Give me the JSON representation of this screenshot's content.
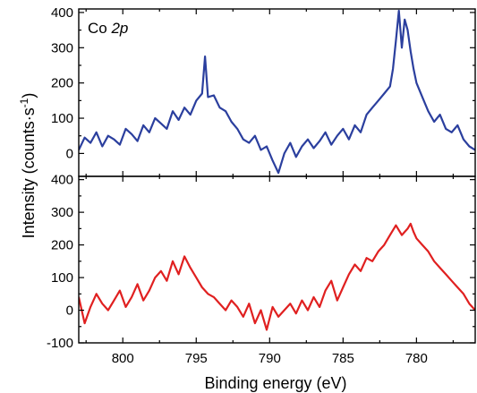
{
  "chart_data": {
    "type": "line",
    "title": "",
    "xlabel": "Binding energy (eV)",
    "ylabel_main": "Intensity (counts·s",
    "ylabel_sup": "-1",
    "ylabel_end": ")",
    "xlim": [
      803,
      776
    ],
    "x_reversed": true,
    "xticks": [
      800,
      795,
      790,
      785,
      780
    ],
    "xtick_labels": [
      "800",
      "795",
      "790",
      "785",
      "780"
    ],
    "annotation_prefix": "Co ",
    "annotation_italic": "2p",
    "panels": [
      {
        "name": "top",
        "ylim": [
          -65,
          410
        ],
        "yticks": [
          0,
          100,
          200,
          300,
          400
        ],
        "ytick_labels": [
          "0",
          "100",
          "200",
          "300",
          "400"
        ],
        "color": "#2b3f9e",
        "series": {
          "name": "",
          "x": [
            803.0,
            802.6,
            802.2,
            801.8,
            801.4,
            801.0,
            800.6,
            800.2,
            799.8,
            799.4,
            799.0,
            798.6,
            798.2,
            797.8,
            797.4,
            797.0,
            796.6,
            796.2,
            795.8,
            795.4,
            795.0,
            794.6,
            794.4,
            794.2,
            793.8,
            793.4,
            793.0,
            792.6,
            792.2,
            791.8,
            791.4,
            791.0,
            790.6,
            790.2,
            789.8,
            789.4,
            789.0,
            788.6,
            788.2,
            787.8,
            787.4,
            787.0,
            786.6,
            786.2,
            785.8,
            785.4,
            785.0,
            784.6,
            784.2,
            783.8,
            783.4,
            783.0,
            782.6,
            782.2,
            781.8,
            781.6,
            781.4,
            781.2,
            781.0,
            780.8,
            780.6,
            780.4,
            780.2,
            780.0,
            779.6,
            779.2,
            778.8,
            778.4,
            778.0,
            777.6,
            777.2,
            776.8,
            776.4,
            776.0
          ],
          "values": [
            10,
            45,
            30,
            60,
            20,
            50,
            40,
            25,
            70,
            55,
            35,
            80,
            60,
            100,
            85,
            70,
            120,
            95,
            130,
            110,
            150,
            170,
            275,
            160,
            165,
            130,
            120,
            90,
            70,
            40,
            30,
            50,
            10,
            20,
            -20,
            -55,
            0,
            30,
            -10,
            20,
            40,
            15,
            35,
            60,
            25,
            50,
            70,
            40,
            80,
            60,
            110,
            130,
            150,
            170,
            190,
            240,
            320,
            405,
            300,
            380,
            350,
            290,
            240,
            200,
            160,
            120,
            90,
            110,
            70,
            60,
            80,
            40,
            20,
            10
          ]
        }
      },
      {
        "name": "bottom",
        "ylim": [
          -100,
          410
        ],
        "yticks": [
          -100,
          0,
          100,
          200,
          300,
          400
        ],
        "ytick_labels": [
          "-100",
          "0",
          "100",
          "200",
          "300",
          "400"
        ],
        "color": "#e02020",
        "series": {
          "name": "",
          "x": [
            803.0,
            802.6,
            802.2,
            801.8,
            801.4,
            801.0,
            800.6,
            800.2,
            799.8,
            799.4,
            799.0,
            798.6,
            798.2,
            797.8,
            797.4,
            797.0,
            796.6,
            796.2,
            795.8,
            795.4,
            795.0,
            794.6,
            794.2,
            793.8,
            793.4,
            793.0,
            792.6,
            792.2,
            791.8,
            791.4,
            791.0,
            790.6,
            790.2,
            789.8,
            789.4,
            789.0,
            788.6,
            788.2,
            787.8,
            787.4,
            787.0,
            786.6,
            786.2,
            785.8,
            785.4,
            785.0,
            784.6,
            784.2,
            783.8,
            783.4,
            783.0,
            782.6,
            782.2,
            781.8,
            781.4,
            781.0,
            780.6,
            780.4,
            780.2,
            780.0,
            779.6,
            779.2,
            778.8,
            778.4,
            778.0,
            777.6,
            777.2,
            776.8,
            776.4,
            776.0
          ],
          "values": [
            40,
            -40,
            10,
            50,
            20,
            0,
            30,
            60,
            10,
            40,
            80,
            30,
            60,
            100,
            120,
            90,
            150,
            110,
            165,
            130,
            100,
            70,
            50,
            40,
            20,
            0,
            30,
            10,
            -20,
            20,
            -40,
            0,
            -60,
            10,
            -20,
            0,
            20,
            -10,
            30,
            0,
            40,
            10,
            60,
            90,
            30,
            70,
            110,
            140,
            120,
            160,
            150,
            180,
            200,
            230,
            260,
            230,
            250,
            265,
            240,
            220,
            200,
            180,
            150,
            130,
            110,
            90,
            70,
            50,
            20,
            0
          ]
        }
      }
    ]
  }
}
